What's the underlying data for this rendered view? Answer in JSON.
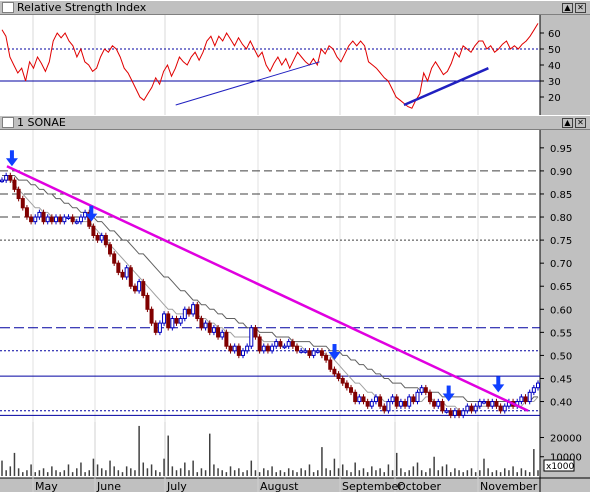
{
  "rsi_panel": {
    "title": "Relative Strength Index",
    "y_ticks": [
      "60",
      "50",
      "40",
      "30",
      "20"
    ]
  },
  "price_panel": {
    "title": "1 SONAE",
    "y_ticks": [
      "0.95",
      "0.90",
      "0.85",
      "0.80",
      "0.75",
      "0.70",
      "0.65",
      "0.60",
      "0.55",
      "0.50",
      "0.45",
      "0.40"
    ]
  },
  "volume_panel": {
    "y_ticks": [
      "20000",
      "10000"
    ],
    "unit": "x1000"
  },
  "x_axis": {
    "months": [
      "May",
      "June",
      "July",
      "August",
      "September",
      "October",
      "November"
    ]
  },
  "chart_data": [
    {
      "type": "line",
      "name": "Relative Strength Index",
      "ylim": [
        10,
        70
      ],
      "reference_lines": [
        50,
        30
      ],
      "values": [
        62,
        58,
        45,
        40,
        35,
        38,
        30,
        42,
        38,
        45,
        41,
        36,
        42,
        55,
        60,
        57,
        60,
        55,
        52,
        45,
        50,
        42,
        40,
        36,
        38,
        45,
        50,
        48,
        52,
        50,
        45,
        38,
        35,
        30,
        25,
        20,
        18,
        22,
        26,
        32,
        28,
        36,
        40,
        33,
        38,
        45,
        42,
        40,
        45,
        48,
        43,
        48,
        55,
        58,
        52,
        58,
        55,
        60,
        56,
        52,
        57,
        53,
        50,
        55,
        50,
        45,
        48,
        40,
        36,
        41,
        45,
        40,
        44,
        38,
        43,
        48,
        45,
        42,
        40,
        44,
        40,
        50,
        47,
        52,
        50,
        45,
        42,
        47,
        52,
        55,
        52,
        55,
        52,
        42,
        40,
        38,
        35,
        32,
        30,
        25,
        20,
        18,
        16,
        14,
        13,
        18,
        22,
        35,
        30,
        38,
        42,
        38,
        34,
        36,
        41,
        48,
        45,
        52,
        50,
        48,
        52,
        55,
        55,
        50,
        52,
        48,
        50,
        53,
        55,
        50,
        52,
        50,
        53,
        55,
        58,
        62,
        66
      ],
      "trendlines": [
        {
          "x": [
            "2003-07-01",
            "2003-08-28"
          ],
          "y": [
            15,
            42
          ]
        },
        {
          "x": [
            "2003-10-01",
            "2003-11-04"
          ],
          "y": [
            15,
            38
          ]
        }
      ]
    },
    {
      "type": "line",
      "name": "1 SONAE",
      "ylim": [
        0.36,
        0.98
      ],
      "x_range": [
        "2003-04-22",
        "2003-11-24"
      ],
      "values": [
        0.88,
        0.89,
        0.88,
        0.86,
        0.84,
        0.82,
        0.8,
        0.79,
        0.8,
        0.81,
        0.79,
        0.8,
        0.79,
        0.8,
        0.79,
        0.8,
        0.8,
        0.79,
        0.79,
        0.8,
        0.81,
        0.78,
        0.76,
        0.75,
        0.76,
        0.74,
        0.72,
        0.7,
        0.68,
        0.67,
        0.69,
        0.65,
        0.64,
        0.66,
        0.63,
        0.6,
        0.57,
        0.55,
        0.57,
        0.59,
        0.56,
        0.58,
        0.57,
        0.58,
        0.6,
        0.59,
        0.61,
        0.58,
        0.56,
        0.57,
        0.55,
        0.56,
        0.54,
        0.55,
        0.52,
        0.51,
        0.52,
        0.5,
        0.51,
        0.52,
        0.56,
        0.54,
        0.51,
        0.52,
        0.51,
        0.52,
        0.53,
        0.52,
        0.52,
        0.53,
        0.52,
        0.51,
        0.51,
        0.51,
        0.5,
        0.51,
        0.51,
        0.5,
        0.49,
        0.47,
        0.46,
        0.45,
        0.44,
        0.43,
        0.42,
        0.4,
        0.41,
        0.4,
        0.39,
        0.4,
        0.41,
        0.39,
        0.38,
        0.4,
        0.41,
        0.39,
        0.4,
        0.39,
        0.41,
        0.4,
        0.42,
        0.43,
        0.42,
        0.4,
        0.39,
        0.4,
        0.38,
        0.38,
        0.37,
        0.38,
        0.37,
        0.38,
        0.39,
        0.38,
        0.39,
        0.4,
        0.4,
        0.39,
        0.4,
        0.39,
        0.38,
        0.39,
        0.4,
        0.39,
        0.4,
        0.41,
        0.4,
        0.42,
        0.43,
        0.44
      ],
      "moving_averages": [
        {
          "values": [
            0.88,
            0.88,
            0.88,
            0.87,
            0.86,
            0.85,
            0.84,
            0.83,
            0.82,
            0.82,
            0.81,
            0.81,
            0.8,
            0.8,
            0.8,
            0.8,
            0.8,
            0.8,
            0.79,
            0.79,
            0.79,
            0.79,
            0.78,
            0.77,
            0.76,
            0.75,
            0.74,
            0.73,
            0.72,
            0.71,
            0.7,
            0.69,
            0.68,
            0.67,
            0.66,
            0.65,
            0.64,
            0.63,
            0.62,
            0.61,
            0.6,
            0.6,
            0.59,
            0.59,
            0.59,
            0.59,
            0.59,
            0.59,
            0.58,
            0.58,
            0.57,
            0.57,
            0.56,
            0.56,
            0.55,
            0.55,
            0.54,
            0.54,
            0.54,
            0.54,
            0.54,
            0.54,
            0.54,
            0.53,
            0.53,
            0.53,
            0.53,
            0.52,
            0.52,
            0.52,
            0.52,
            0.52,
            0.52,
            0.51,
            0.51,
            0.51,
            0.51,
            0.51,
            0.5,
            0.5,
            0.49,
            0.48,
            0.47,
            0.46,
            0.45,
            0.44,
            0.44,
            0.43,
            0.42,
            0.42,
            0.41,
            0.41,
            0.4,
            0.4,
            0.4,
            0.4,
            0.4,
            0.4,
            0.4,
            0.4,
            0.4,
            0.4,
            0.41,
            0.41,
            0.4,
            0.4,
            0.4,
            0.39,
            0.39,
            0.39,
            0.38,
            0.38,
            0.38,
            0.38,
            0.38,
            0.39,
            0.39,
            0.39,
            0.39,
            0.39,
            0.39,
            0.39,
            0.39,
            0.39,
            0.39,
            0.39,
            0.4,
            0.4,
            0.4,
            0.41
          ]
        },
        {
          "values": [
            0.89,
            0.89,
            0.89,
            0.89,
            0.88,
            0.88,
            0.88,
            0.87,
            0.87,
            0.86,
            0.86,
            0.85,
            0.85,
            0.84,
            0.84,
            0.83,
            0.83,
            0.82,
            0.82,
            0.81,
            0.81,
            0.8,
            0.8,
            0.79,
            0.79,
            0.78,
            0.77,
            0.77,
            0.76,
            0.75,
            0.75,
            0.74,
            0.73,
            0.72,
            0.72,
            0.71,
            0.7,
            0.69,
            0.68,
            0.67,
            0.67,
            0.66,
            0.65,
            0.64,
            0.64,
            0.63,
            0.62,
            0.62,
            0.61,
            0.61,
            0.6,
            0.6,
            0.59,
            0.59,
            0.58,
            0.58,
            0.58,
            0.57,
            0.57,
            0.56,
            0.56,
            0.56,
            0.55,
            0.55,
            0.55,
            0.55,
            0.54,
            0.54,
            0.54,
            0.54,
            0.53,
            0.53,
            0.53,
            0.53,
            0.53,
            0.52,
            0.52,
            0.52,
            0.52,
            0.51,
            0.51,
            0.51,
            0.5,
            0.5,
            0.49,
            0.49,
            0.48,
            0.48,
            0.47,
            0.47,
            0.46,
            0.46,
            0.45,
            0.45,
            0.44,
            0.44,
            0.44,
            0.43,
            0.43,
            0.43,
            0.43,
            0.42,
            0.42,
            0.42,
            0.42,
            0.42,
            0.41,
            0.41,
            0.41,
            0.41,
            0.41,
            0.41,
            0.4,
            0.4,
            0.4,
            0.4,
            0.4,
            0.4,
            0.4,
            0.4,
            0.4,
            0.4,
            0.4,
            0.4,
            0.4,
            0.4,
            0.4,
            0.4,
            0.41,
            0.41
          ]
        }
      ],
      "trendline": {
        "x": [
          "2003-04-24",
          "2003-11-20"
        ],
        "y": [
          0.91,
          0.38
        ]
      },
      "horizontal_levels": [
        0.9,
        0.85,
        0.8,
        0.75,
        0.56,
        0.51,
        0.455,
        0.38,
        0.37
      ],
      "marked_dates": [
        "2003-04-26",
        "2003-05-28",
        "2003-09-03",
        "2003-10-19",
        "2003-11-08"
      ]
    },
    {
      "type": "bar",
      "name": "Volume",
      "ylim": [
        0,
        27000
      ],
      "values": [
        8000,
        3000,
        5000,
        12000,
        4000,
        2000,
        3000,
        6000,
        2000,
        3000,
        4000,
        2000,
        5000,
        3000,
        2000,
        3000,
        6000,
        2000,
        4000,
        7000,
        2000,
        3000,
        9000,
        6000,
        4000,
        3000,
        8000,
        5000,
        3000,
        2000,
        5000,
        4000,
        3000,
        26000,
        7000,
        4000,
        6000,
        3000,
        2000,
        9000,
        21000,
        5000,
        3000,
        4000,
        7000,
        3000,
        8000,
        2000,
        4000,
        3000,
        22000,
        6000,
        4000,
        3000,
        2000,
        5000,
        3000,
        4000,
        2000,
        3000,
        8000,
        3000,
        2000,
        4000,
        3000,
        5000,
        2000,
        3000,
        2000,
        4000,
        3000,
        2000,
        4000,
        3000,
        6000,
        2000,
        3000,
        15000,
        4000,
        3000,
        9000,
        4000,
        6000,
        3000,
        2000,
        7000,
        3000,
        4000,
        2000,
        5000,
        3000,
        4000,
        2000,
        6000,
        3000,
        12000,
        4000,
        2000,
        3000,
        5000,
        7000,
        3000,
        2000,
        4000,
        10000,
        3000,
        5000,
        6000,
        2000,
        4000,
        3000,
        2000,
        3000,
        4000,
        2000,
        3000,
        9000,
        4000,
        2000,
        3000,
        2000,
        4000,
        3000,
        5000,
        2000,
        4000,
        3000,
        2000,
        14000,
        3000
      ]
    }
  ],
  "colors": {
    "price_up": "#0000c0",
    "price_down": "#800000",
    "trendline": "#e000e0",
    "rsi_line": "#e00000",
    "rsi_trend": "#2020c0",
    "arrow": "#1040ff"
  }
}
